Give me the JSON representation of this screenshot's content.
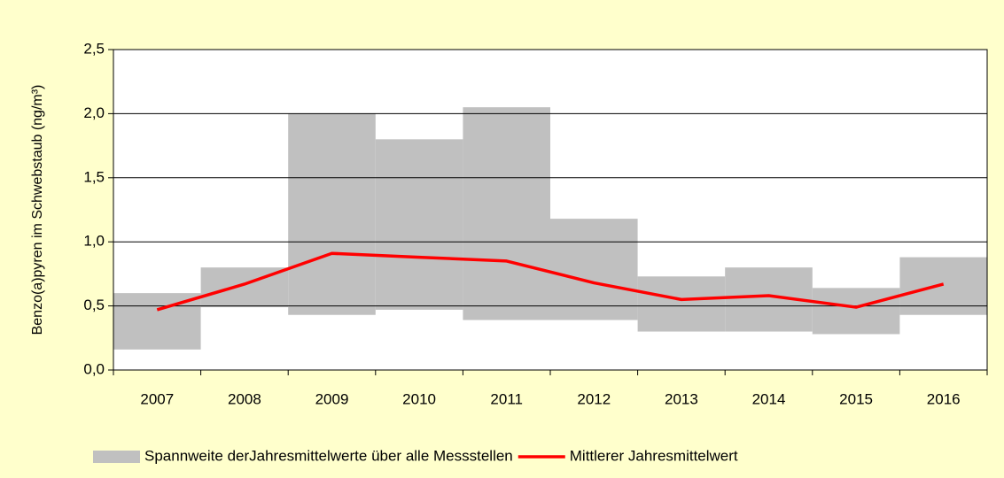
{
  "chart_data": {
    "type": "combo",
    "y_label": "Benzo(a)pyren im Schwebstaub (ng/m³)",
    "categories": [
      "2007",
      "2008",
      "2009",
      "2010",
      "2011",
      "2012",
      "2013",
      "2014",
      "2015",
      "2016"
    ],
    "series": [
      {
        "name": "Spannweite derJahresmittelwerte über alle Messstellen",
        "type": "range_bar",
        "color": "#c0c0c0",
        "low": [
          0.16,
          0.49,
          0.43,
          0.47,
          0.39,
          0.39,
          0.3,
          0.3,
          0.28,
          0.43
        ],
        "high": [
          0.6,
          0.8,
          2.0,
          1.8,
          2.05,
          1.18,
          0.73,
          0.8,
          0.64,
          0.88
        ]
      },
      {
        "name": "Mittlerer Jahresmittelwert",
        "type": "line",
        "color": "#ff0000",
        "values": [
          0.47,
          0.67,
          0.91,
          0.88,
          0.85,
          0.68,
          0.55,
          0.58,
          0.49,
          0.67
        ]
      }
    ],
    "ylim": [
      0,
      2.5
    ],
    "yticks": [
      {
        "value": 0,
        "label": "0,0"
      },
      {
        "value": 0.5,
        "label": "0,5"
      },
      {
        "value": 1,
        "label": "1,0"
      },
      {
        "value": 1.5,
        "label": "1,5"
      },
      {
        "value": 2,
        "label": "2,0"
      },
      {
        "value": 2.5,
        "label": "2,5"
      }
    ],
    "grid": true,
    "legend": "bottom"
  }
}
